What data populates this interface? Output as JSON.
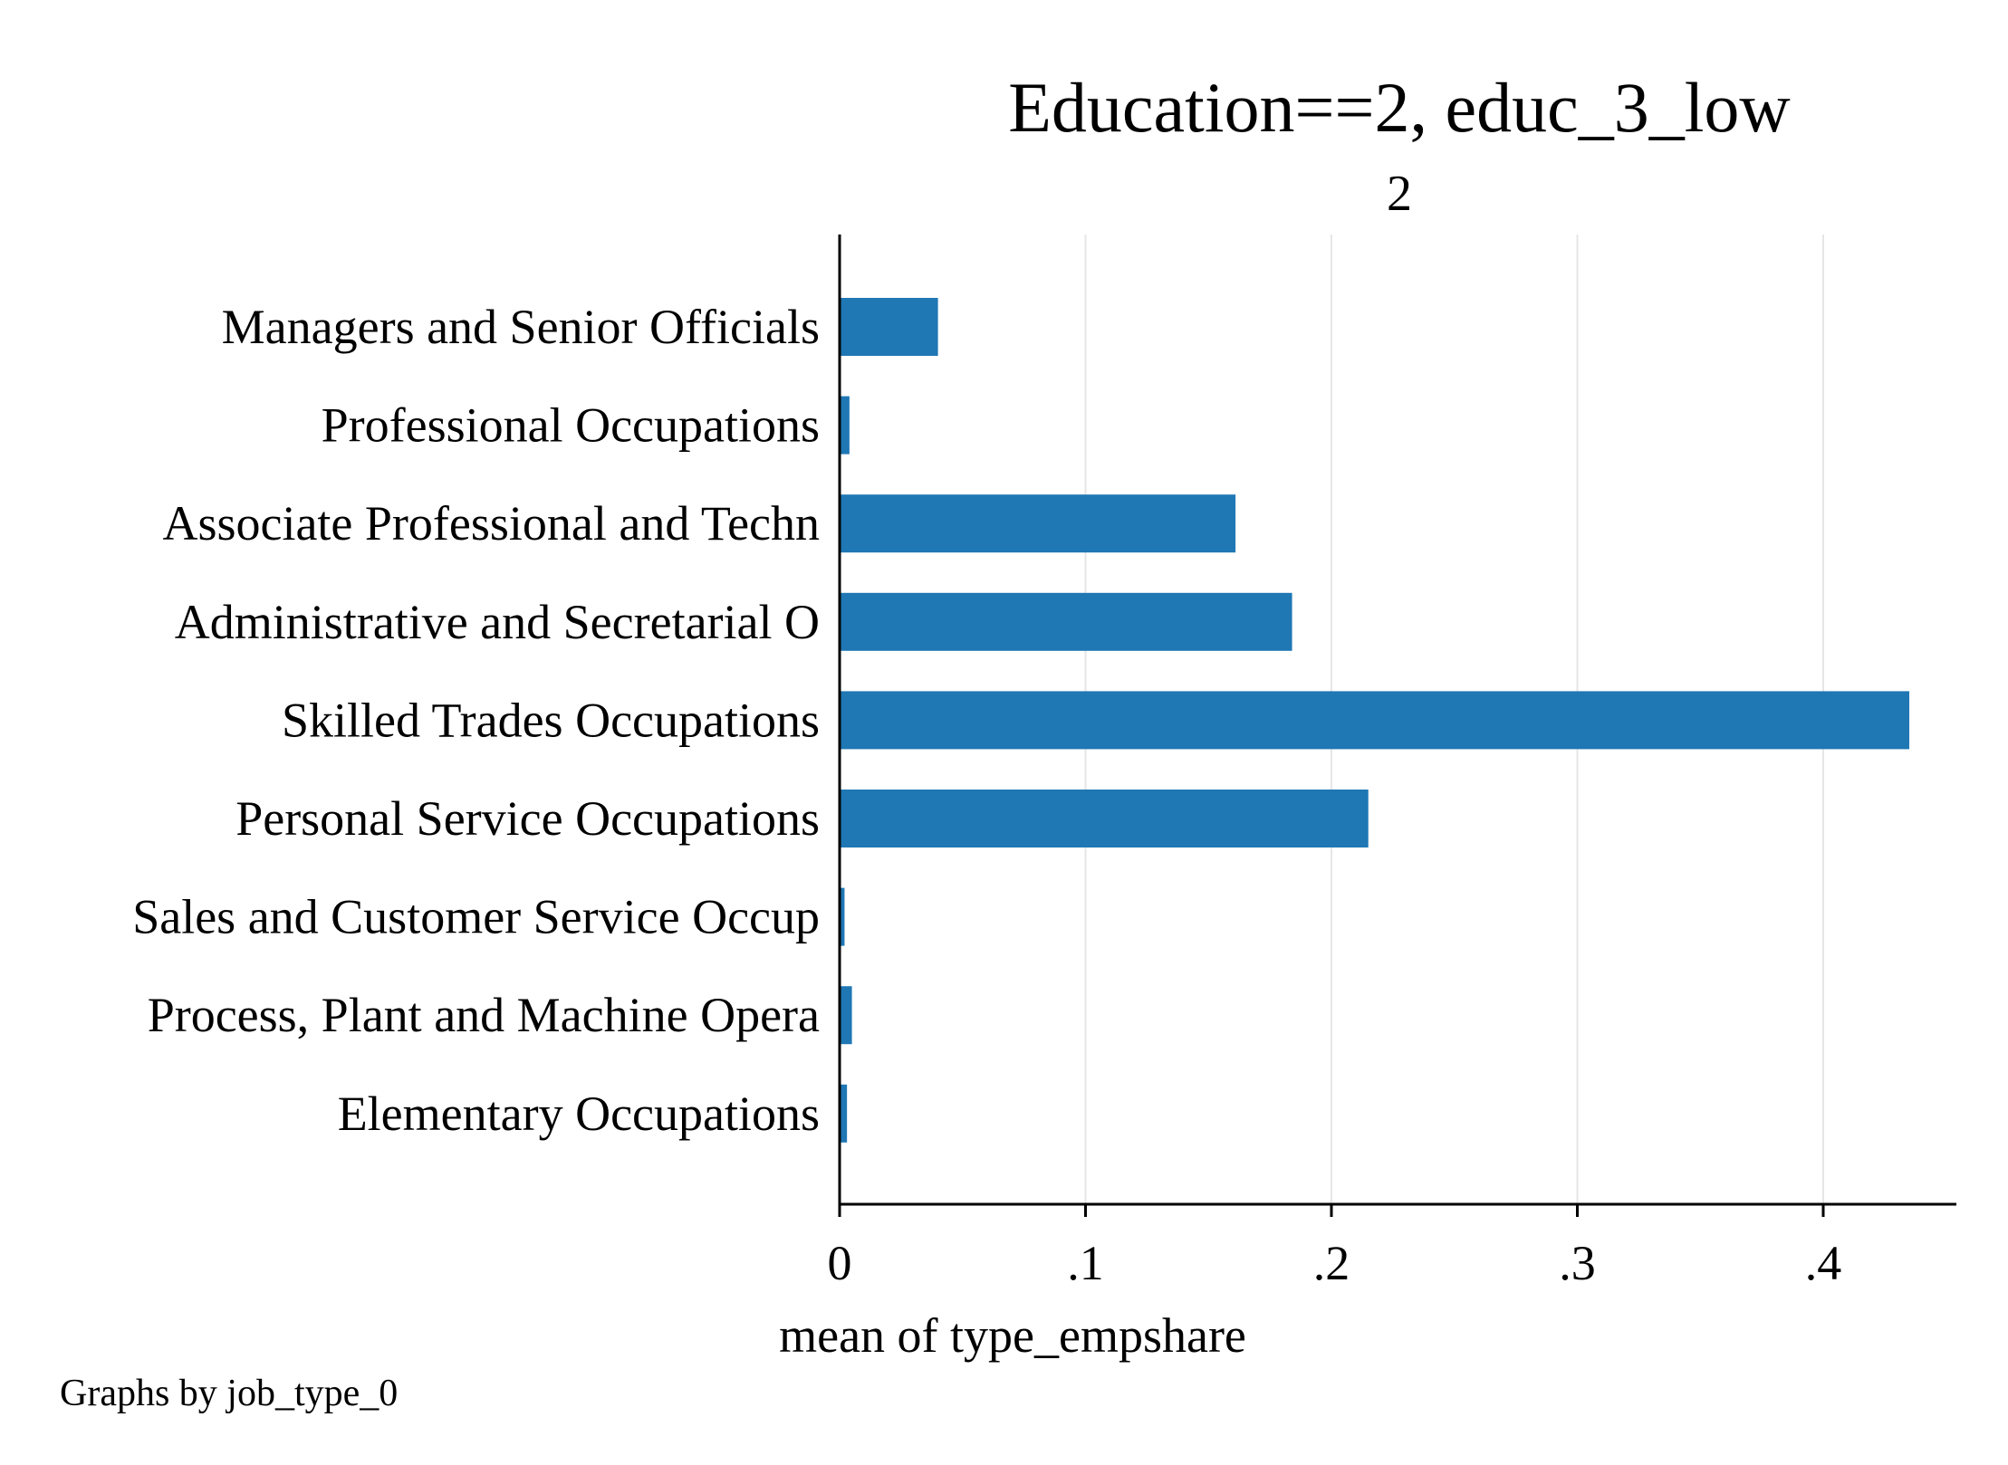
{
  "chart_data": {
    "type": "bar",
    "orientation": "horizontal",
    "title": "Education==2, educ_3_low",
    "subtitle": "2",
    "xlabel": "mean of type_empshare",
    "ylabel": "",
    "note": "Graphs by job_type_0",
    "categories": [
      "Managers and Senior Officials",
      "Professional Occupations",
      "Associate Professional and Techn",
      "Administrative and Secretarial O",
      "Skilled Trades Occupations",
      "Personal Service Occupations",
      "Sales and Customer Service Occup",
      "Process, Plant and Machine Opera",
      "Elementary Occupations"
    ],
    "values": [
      0.04,
      0.004,
      0.161,
      0.184,
      0.435,
      0.215,
      0.002,
      0.005,
      0.003
    ],
    "xlim": [
      0,
      0.456
    ],
    "xticks": [
      0,
      0.1,
      0.2,
      0.3,
      0.4
    ],
    "xtick_labels": [
      "0",
      ".1",
      ".2",
      ".3",
      ".4"
    ],
    "grid": true,
    "bar_color": "#1f77b4",
    "grid_color": "#e6e6e6"
  }
}
